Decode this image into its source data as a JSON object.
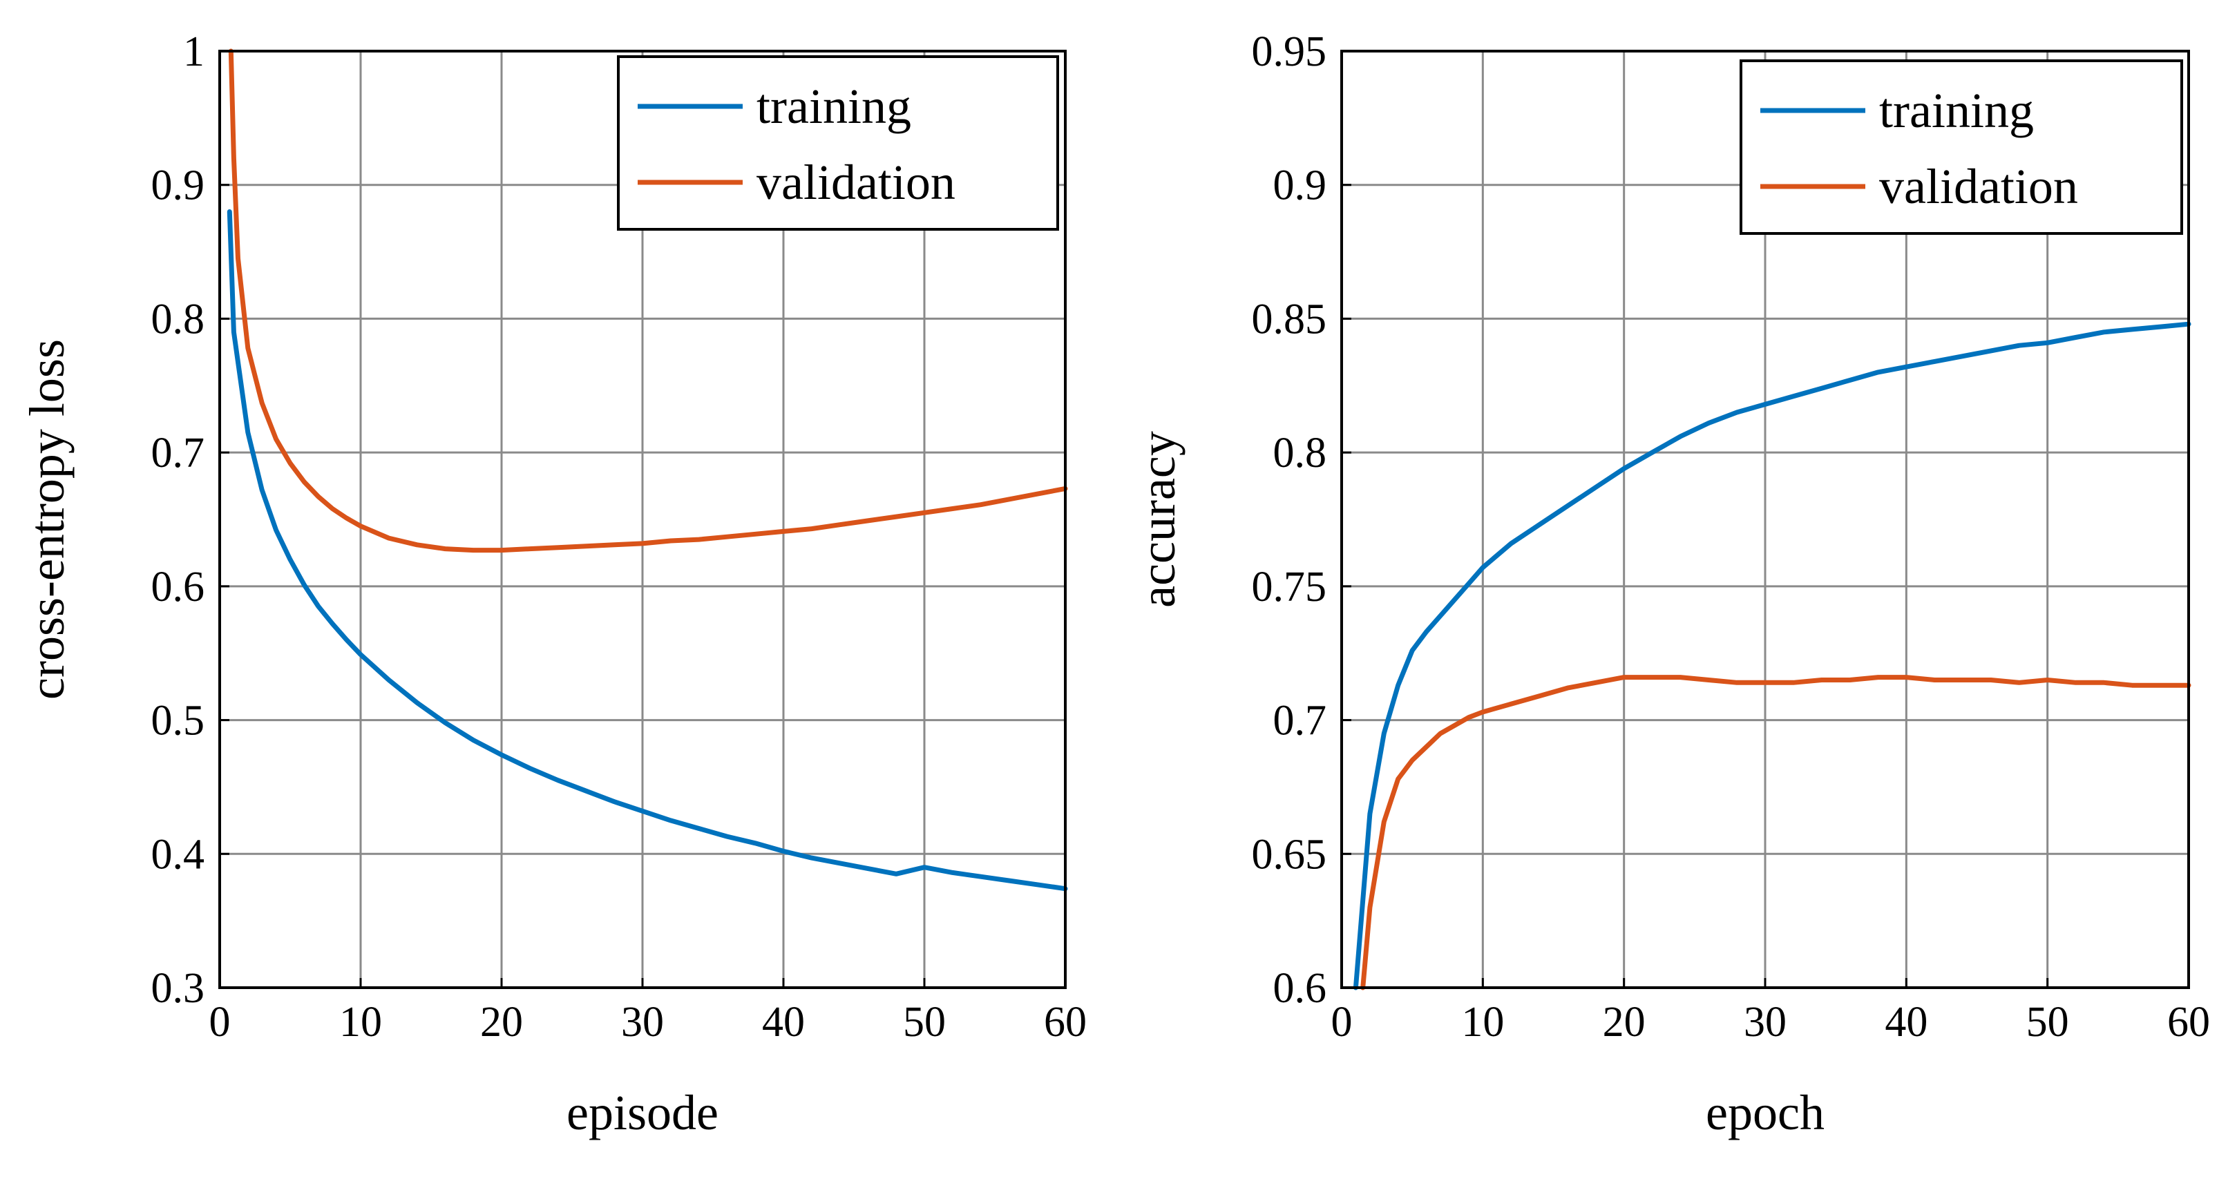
{
  "chart_data": [
    {
      "type": "line",
      "xlabel": "episode",
      "ylabel": "cross-entropy loss",
      "xlim": [
        0,
        60
      ],
      "ylim": [
        0.3,
        1.0
      ],
      "xticks": [
        0,
        10,
        20,
        30,
        40,
        50,
        60
      ],
      "yticks": [
        0.3,
        0.4,
        0.5,
        0.6,
        0.7,
        0.8,
        0.9,
        1.0
      ],
      "xtick_labels": [
        "0",
        "10",
        "20",
        "30",
        "40",
        "50",
        "60"
      ],
      "ytick_labels": [
        "0.3",
        "0.4",
        "0.5",
        "0.6",
        "0.7",
        "0.8",
        "0.9",
        "1"
      ],
      "grid": true,
      "legend_position": "top-right",
      "series": [
        {
          "name": "training",
          "color": "#0072BD",
          "x": [
            0.7,
            1,
            2,
            3,
            4,
            5,
            6,
            7,
            8,
            9,
            10,
            12,
            14,
            16,
            18,
            20,
            22,
            24,
            26,
            28,
            30,
            32,
            34,
            36,
            38,
            40,
            42,
            44,
            46,
            48,
            50,
            52,
            54,
            56,
            58,
            60
          ],
          "y": [
            0.88,
            0.79,
            0.715,
            0.672,
            0.642,
            0.62,
            0.601,
            0.585,
            0.572,
            0.56,
            0.549,
            0.53,
            0.513,
            0.498,
            0.485,
            0.474,
            0.464,
            0.455,
            0.447,
            0.439,
            0.432,
            0.425,
            0.419,
            0.413,
            0.408,
            0.402,
            0.397,
            0.393,
            0.389,
            0.385,
            0.39,
            0.386,
            0.383,
            0.38,
            0.377,
            0.374
          ]
        },
        {
          "name": "validation",
          "color": "#D95319",
          "x": [
            0.8,
            1,
            1.3,
            2,
            3,
            4,
            5,
            6,
            7,
            8,
            9,
            10,
            12,
            14,
            16,
            18,
            20,
            22,
            24,
            26,
            28,
            30,
            32,
            34,
            36,
            38,
            40,
            42,
            44,
            46,
            48,
            50,
            52,
            54,
            56,
            58,
            60
          ],
          "y": [
            1.0,
            0.92,
            0.845,
            0.778,
            0.737,
            0.71,
            0.692,
            0.678,
            0.667,
            0.658,
            0.651,
            0.645,
            0.636,
            0.631,
            0.628,
            0.627,
            0.627,
            0.628,
            0.629,
            0.63,
            0.631,
            0.632,
            0.634,
            0.635,
            0.637,
            0.639,
            0.641,
            0.643,
            0.646,
            0.649,
            0.652,
            0.655,
            0.658,
            0.661,
            0.665,
            0.669,
            0.673
          ]
        }
      ]
    },
    {
      "type": "line",
      "xlabel": "epoch",
      "ylabel": "accuracy",
      "xlim": [
        0,
        60
      ],
      "ylim": [
        0.6,
        0.95
      ],
      "xticks": [
        0,
        10,
        20,
        30,
        40,
        50,
        60
      ],
      "yticks": [
        0.6,
        0.65,
        0.7,
        0.75,
        0.8,
        0.85,
        0.9,
        0.95
      ],
      "xtick_labels": [
        "0",
        "10",
        "20",
        "30",
        "40",
        "50",
        "60"
      ],
      "ytick_labels": [
        "0.6",
        "0.65",
        "0.7",
        "0.75",
        "0.8",
        "0.85",
        "0.9",
        "0.95"
      ],
      "grid": true,
      "legend_position": "top-right",
      "series": [
        {
          "name": "training",
          "color": "#0072BD",
          "x": [
            1,
            2,
            3,
            4,
            5,
            6,
            7,
            8,
            9,
            10,
            12,
            14,
            16,
            18,
            20,
            22,
            24,
            26,
            28,
            30,
            32,
            34,
            36,
            38,
            40,
            42,
            44,
            46,
            48,
            50,
            52,
            54,
            56,
            58,
            60
          ],
          "y": [
            0.6,
            0.665,
            0.695,
            0.713,
            0.726,
            0.733,
            0.739,
            0.745,
            0.751,
            0.757,
            0.766,
            0.773,
            0.78,
            0.787,
            0.794,
            0.8,
            0.806,
            0.811,
            0.815,
            0.818,
            0.821,
            0.824,
            0.827,
            0.83,
            0.832,
            0.834,
            0.836,
            0.838,
            0.84,
            0.841,
            0.843,
            0.845,
            0.846,
            0.847,
            0.848
          ]
        },
        {
          "name": "validation",
          "color": "#D95319",
          "x": [
            1.5,
            2,
            3,
            4,
            5,
            6,
            7,
            8,
            9,
            10,
            12,
            14,
            16,
            18,
            20,
            22,
            24,
            26,
            28,
            30,
            32,
            34,
            36,
            38,
            40,
            42,
            44,
            46,
            48,
            50,
            52,
            54,
            56,
            58,
            60
          ],
          "y": [
            0.6,
            0.63,
            0.662,
            0.678,
            0.685,
            0.69,
            0.695,
            0.698,
            0.701,
            0.703,
            0.706,
            0.709,
            0.712,
            0.714,
            0.716,
            0.716,
            0.716,
            0.715,
            0.714,
            0.714,
            0.714,
            0.715,
            0.715,
            0.716,
            0.716,
            0.715,
            0.715,
            0.715,
            0.714,
            0.715,
            0.714,
            0.714,
            0.713,
            0.713,
            0.713
          ]
        }
      ]
    }
  ]
}
